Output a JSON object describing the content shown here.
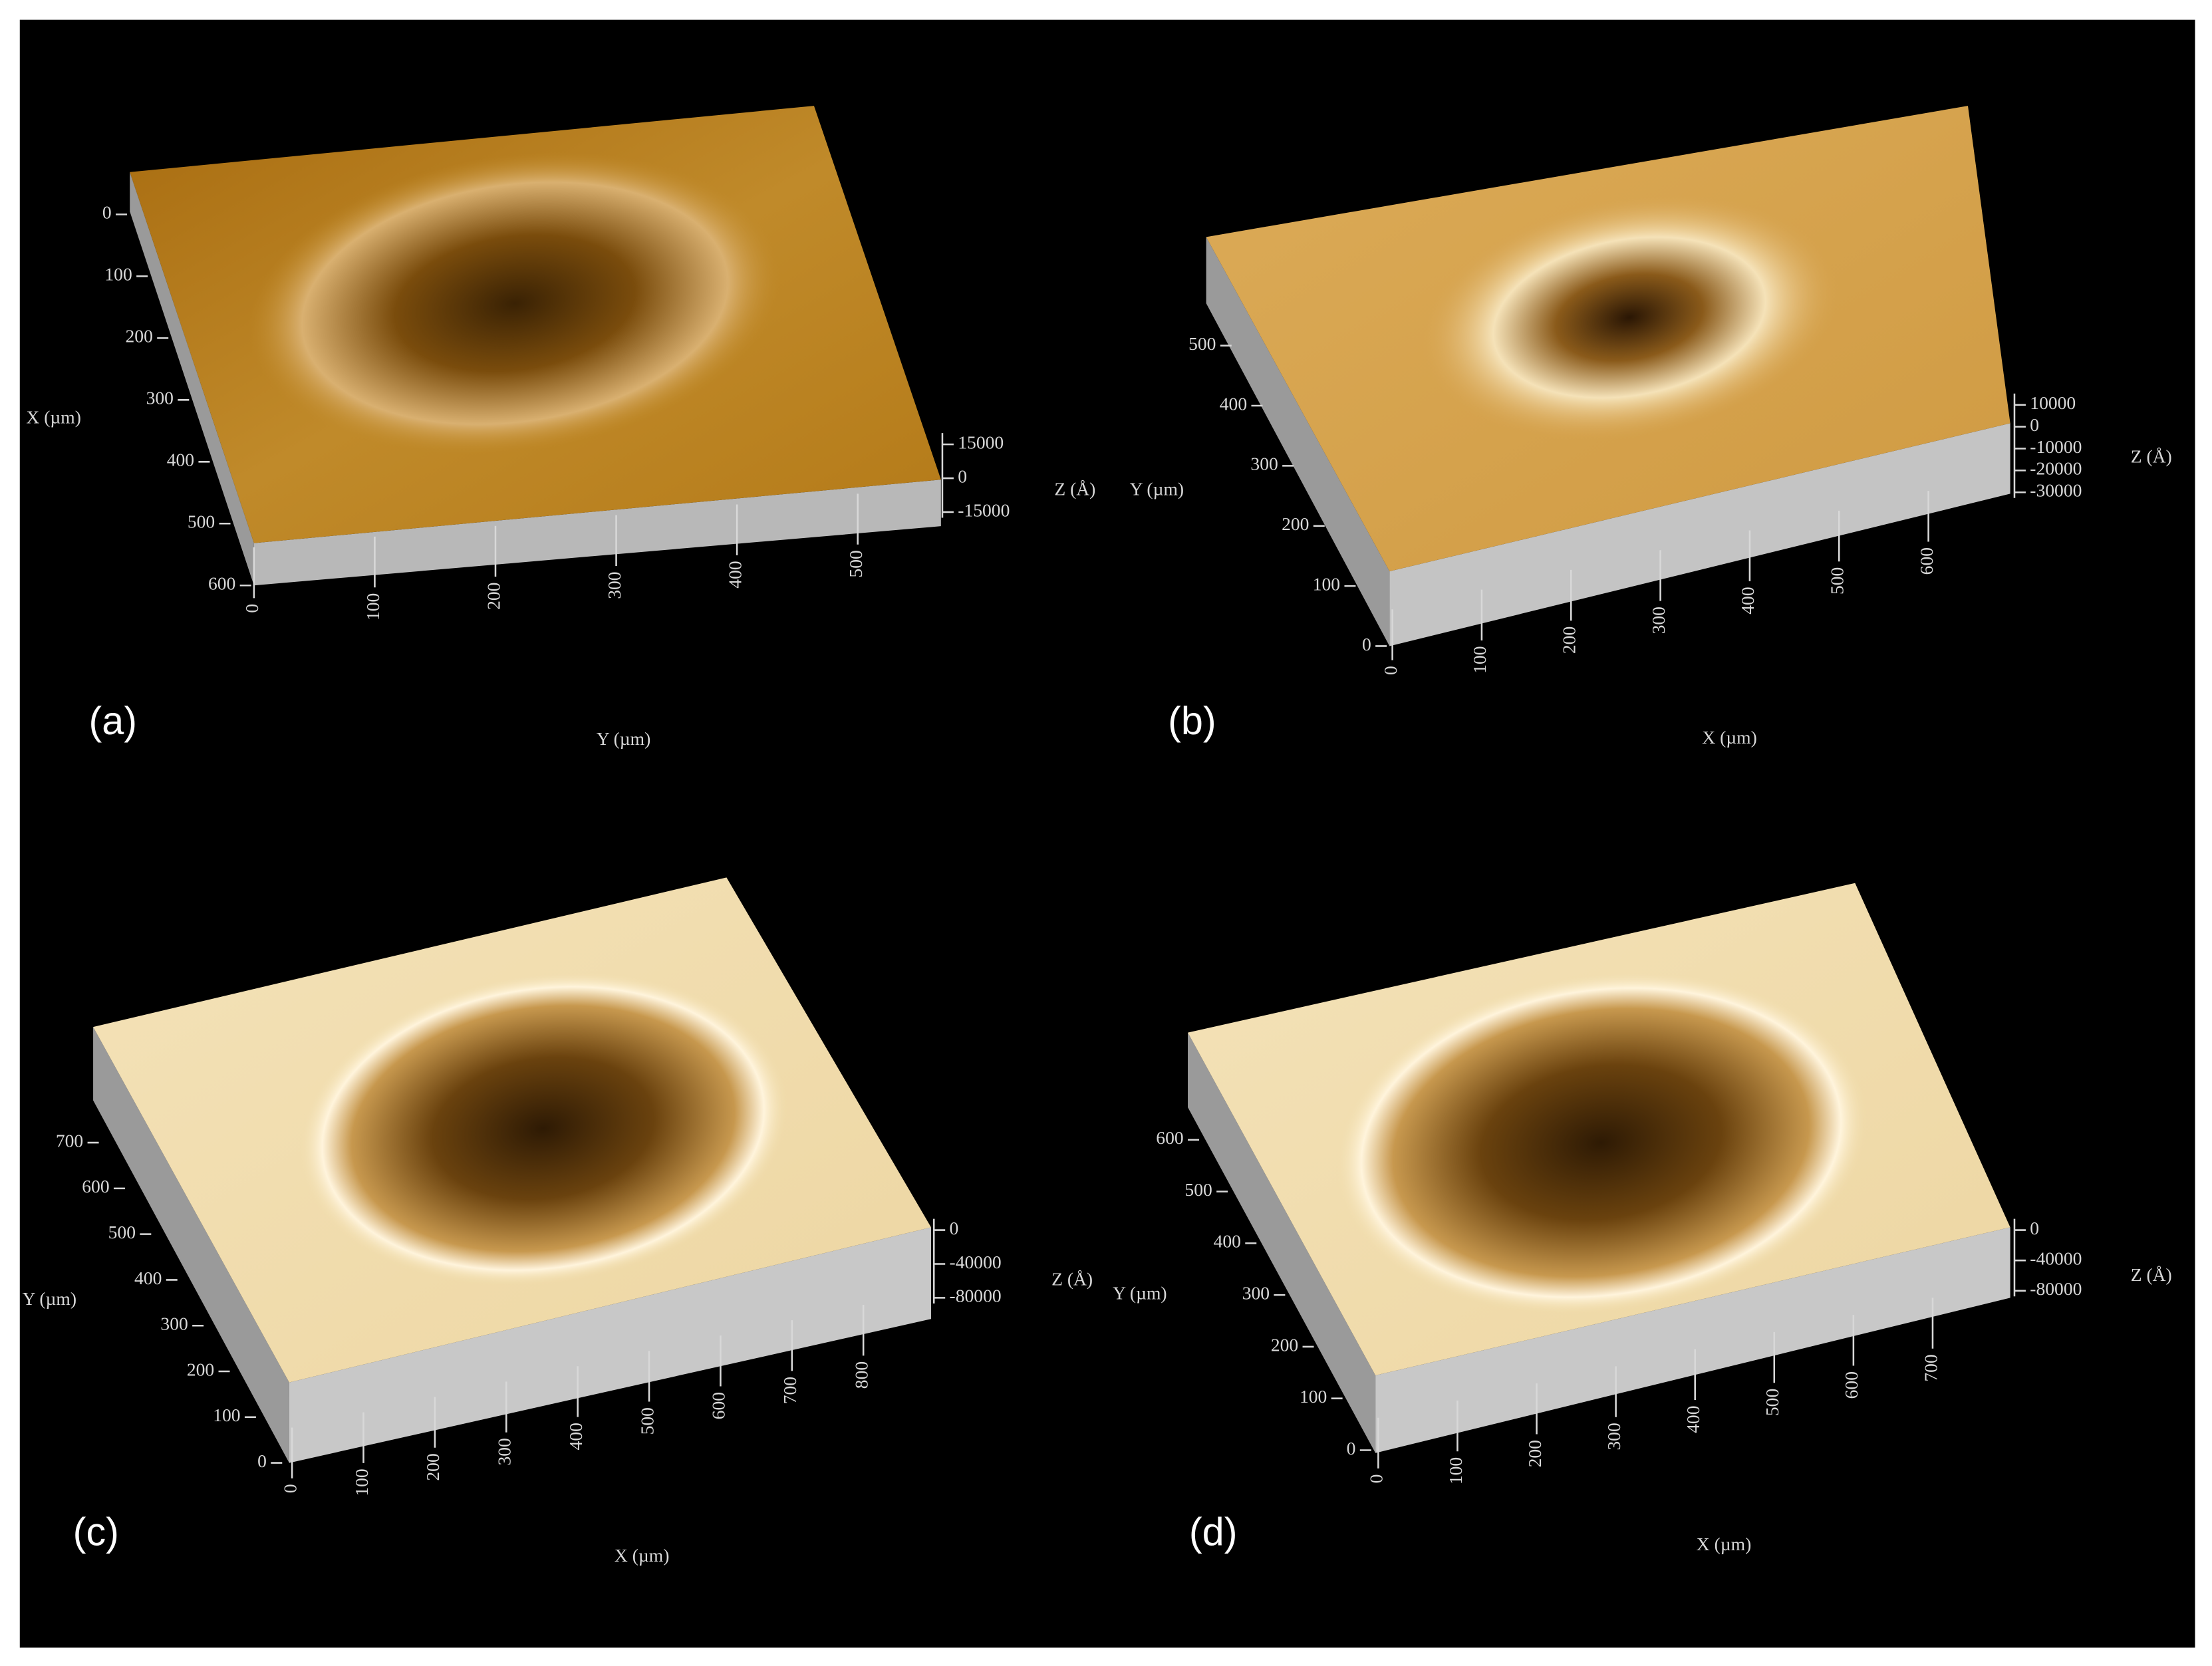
{
  "panels": [
    {
      "label": "(a)",
      "left_axis": {
        "title": "X (µm)",
        "ticks": [
          0,
          100,
          200,
          300,
          400,
          500,
          600
        ]
      },
      "bottom_axis": {
        "title": "Y (µm)",
        "ticks": [
          0,
          100,
          200,
          300,
          400,
          500
        ]
      },
      "z_axis": {
        "title": "Z (Å)",
        "ticks": [
          15000,
          0,
          -15000
        ]
      }
    },
    {
      "label": "(b)",
      "left_axis": {
        "title": "Y (µm)",
        "ticks": [
          0,
          100,
          200,
          300,
          400,
          500
        ]
      },
      "bottom_axis": {
        "title": "X (µm)",
        "ticks": [
          0,
          100,
          200,
          300,
          400,
          500,
          600
        ]
      },
      "z_axis": {
        "title": "Z (Å)",
        "ticks": [
          10000,
          0,
          -10000,
          -20000,
          -30000
        ]
      }
    },
    {
      "label": "(c)",
      "left_axis": {
        "title": "Y (µm)",
        "ticks": [
          0,
          100,
          200,
          300,
          400,
          500,
          600,
          700
        ]
      },
      "bottom_axis": {
        "title": "X (µm)",
        "ticks": [
          0,
          100,
          200,
          300,
          400,
          500,
          600,
          700,
          800
        ]
      },
      "z_axis": {
        "title": "Z (Å)",
        "ticks": [
          0,
          -40000,
          -80000
        ]
      }
    },
    {
      "label": "(d)",
      "left_axis": {
        "title": "Y (µm)",
        "ticks": [
          0,
          100,
          200,
          300,
          400,
          500,
          600
        ]
      },
      "bottom_axis": {
        "title": "X (µm)",
        "ticks": [
          0,
          100,
          200,
          300,
          400,
          500,
          600,
          700
        ]
      },
      "z_axis": {
        "title": "Z (Å)",
        "ticks": [
          0,
          -40000,
          -80000
        ]
      }
    }
  ]
}
